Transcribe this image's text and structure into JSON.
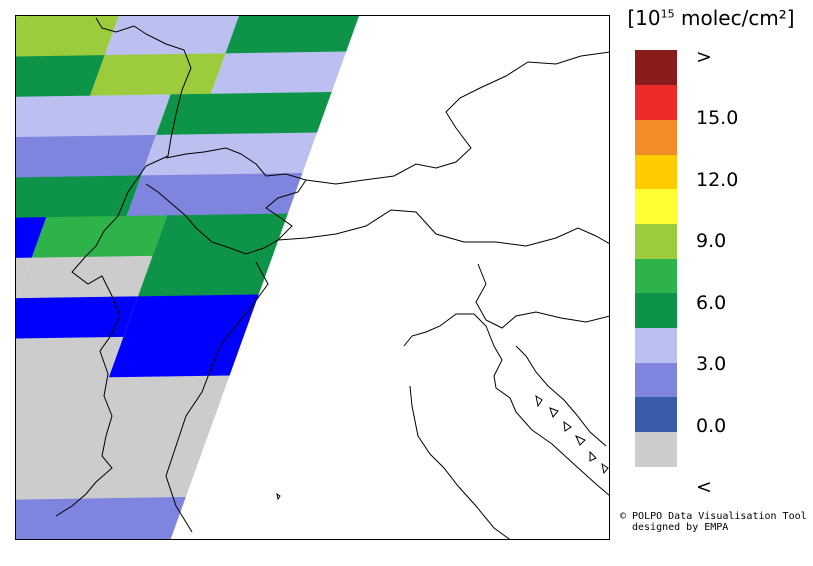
{
  "legend": {
    "unit_prefix": "[10",
    "unit_exponent": "15",
    "unit_suffix": " molec/cm²]",
    "colors": [
      "#cccccc",
      "#3a5ba8",
      "#7f84de",
      "#bcc0f0",
      "#0e9448",
      "#2db34a",
      "#9ccc3c",
      "#ffff33",
      "#ffcc00",
      "#f28c28",
      "#ee2a2a",
      "#8b1c1c"
    ],
    "tick_labels": [
      "<",
      "0.0",
      "3.0",
      "6.0",
      "9.0",
      "12.0",
      "15.0",
      ">"
    ]
  },
  "credit": {
    "line1": "© POLPO Data Visualisation Tool",
    "line2": "designed by EMPA"
  },
  "map": {
    "background_color": "#ffffff",
    "no_data_color": "#cccccc",
    "border_color": "#000000",
    "swath_rows": [
      [
        "#cccccc",
        "#9ccc3c",
        "#bcc0f0",
        "#0e9448"
      ],
      [
        "#2db34a",
        "#0e9448",
        "#9ccc3c",
        "#bcc0f0"
      ],
      [
        "#ffff33",
        "#bcc0f0",
        "#0e9448"
      ],
      [
        "#2db34a",
        "#7f84de",
        "#bcc0f0"
      ],
      [
        "#7f84de",
        "#0e9448",
        "#7f84de"
      ],
      [
        "#0000ff",
        "#0000ff",
        "#2db34a",
        "#0e9448"
      ],
      [
        "#7f84de",
        "#cccccc",
        "#cccccc",
        "#0e9448"
      ],
      [
        "#cccccc",
        "#0000ff",
        "#0000ff",
        "#0000ff"
      ],
      [
        "#cccccc",
        "#cccccc",
        "#cccccc",
        "#0000ff"
      ],
      [
        "#cccccc"
      ],
      [
        "#cccccc"
      ],
      [
        "#cccccc"
      ],
      [
        "#7f84de",
        "#7f84de"
      ]
    ]
  }
}
